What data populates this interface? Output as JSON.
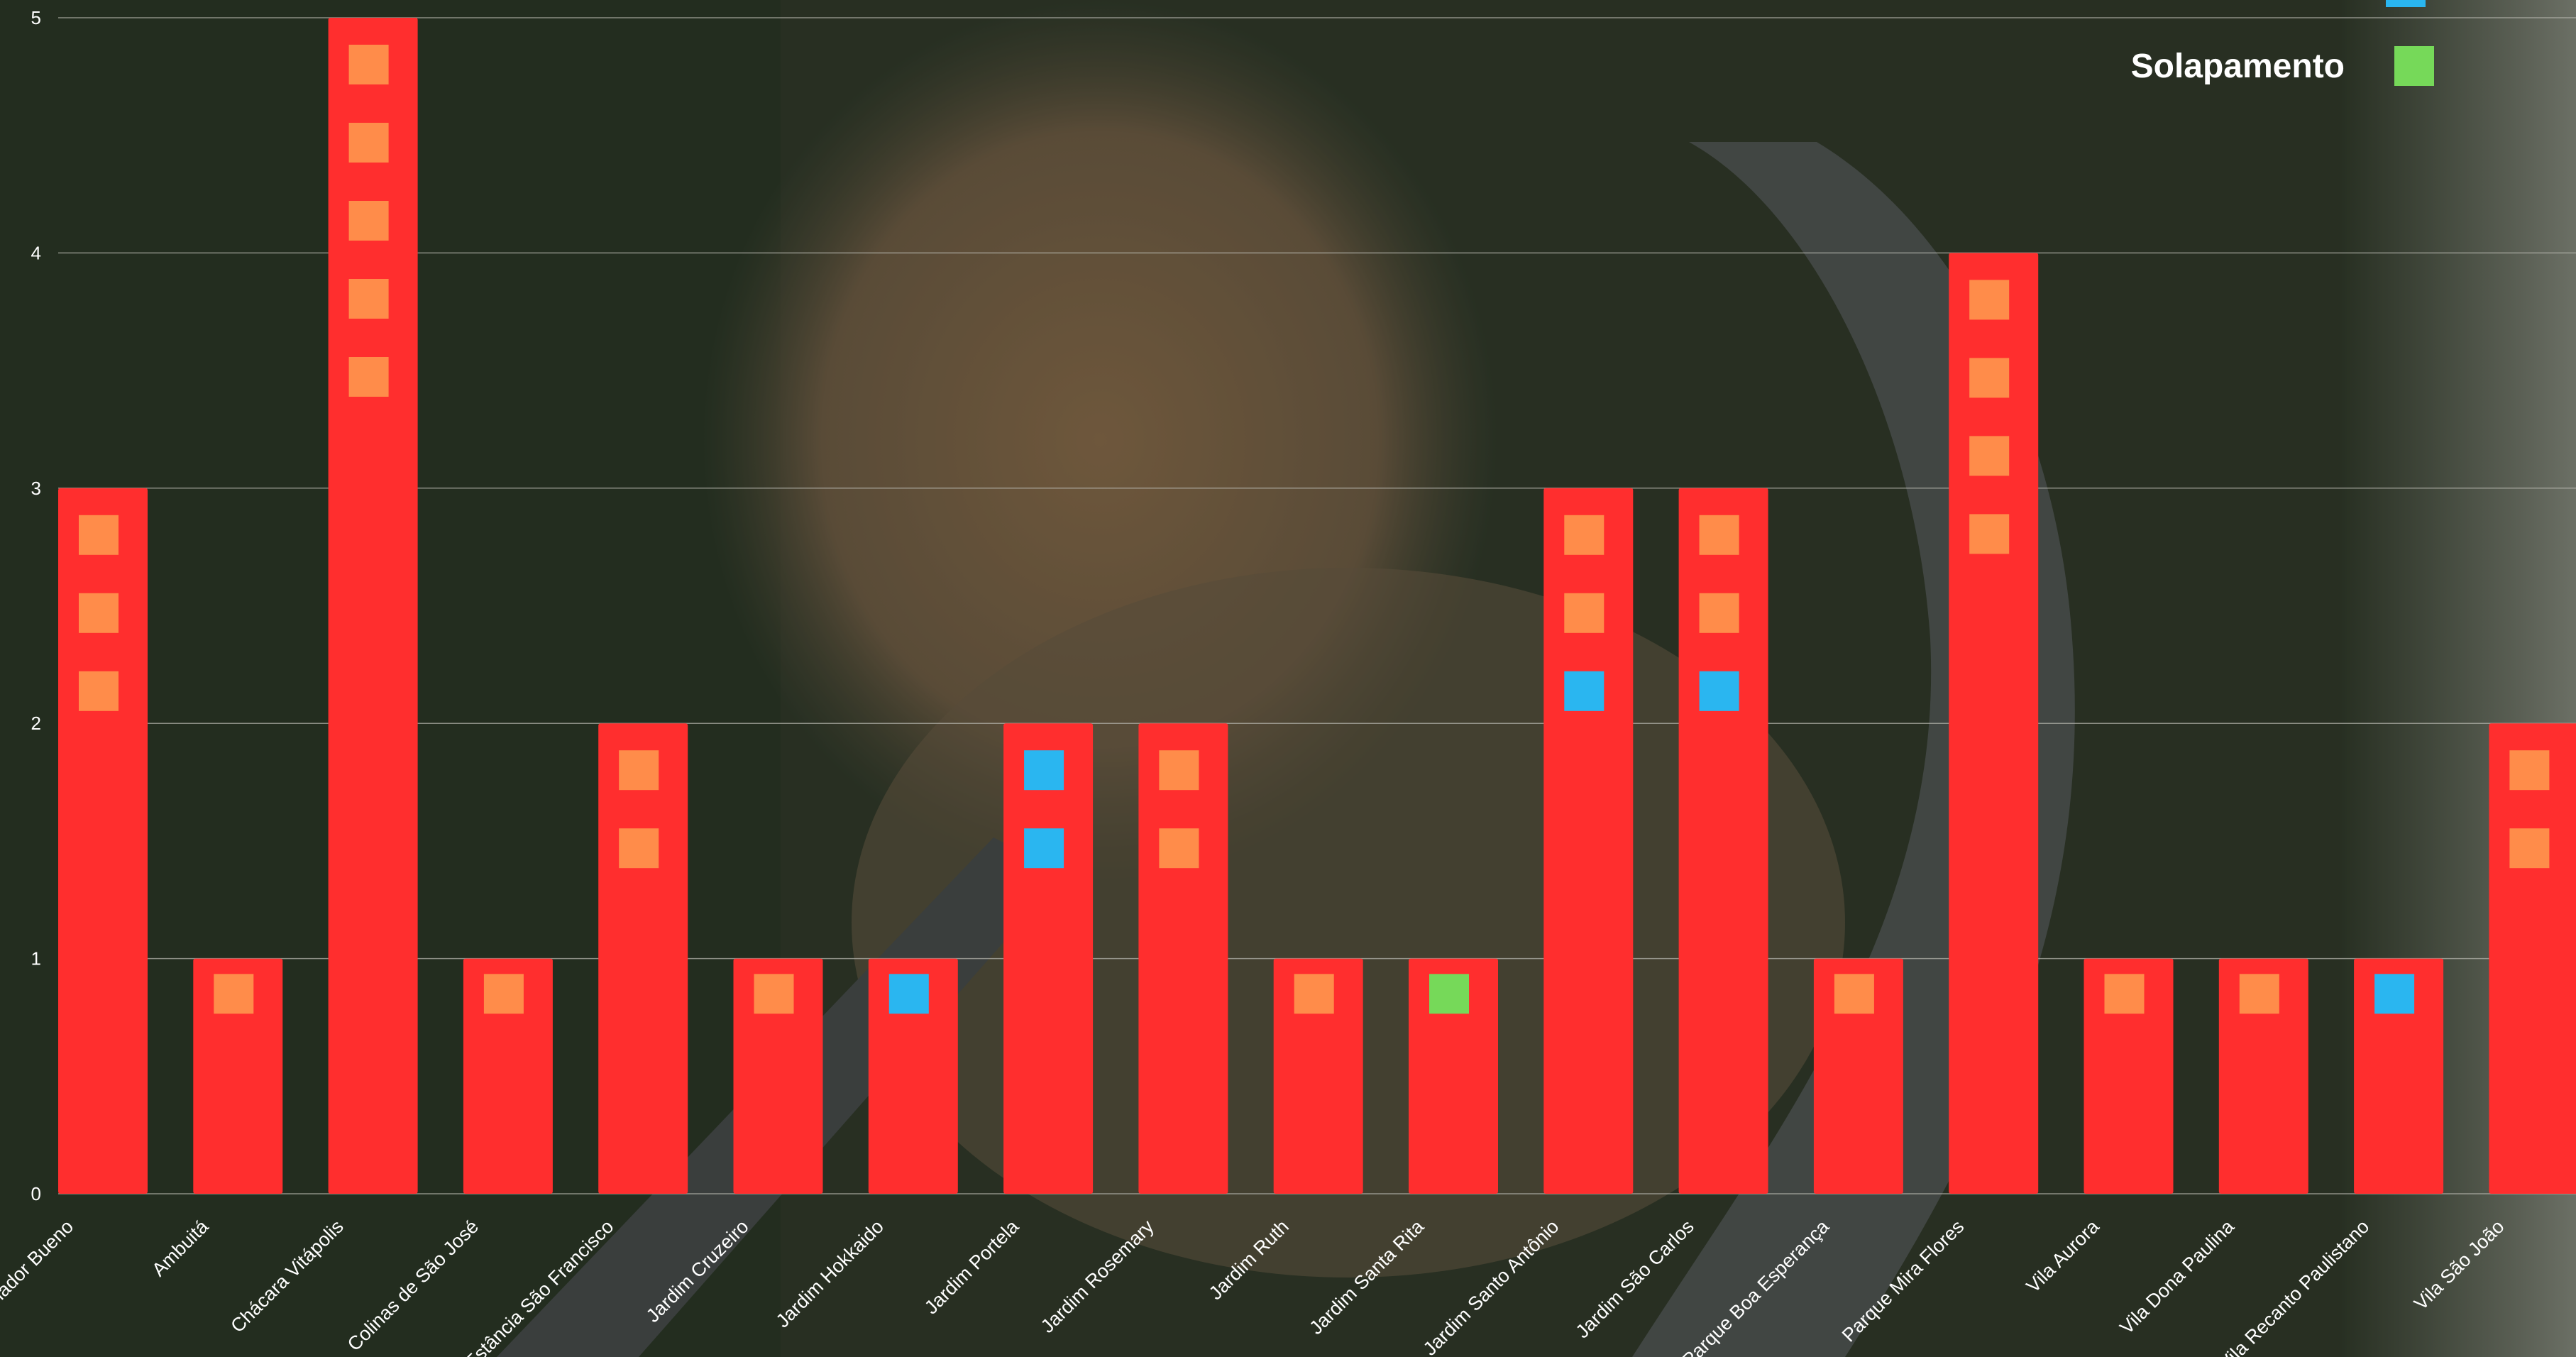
{
  "chart_data": {
    "type": "bar",
    "title": "",
    "xlabel": "",
    "ylabel": "",
    "ylim": [
      0,
      5
    ],
    "yticks": [
      "0",
      "1",
      "2",
      "3",
      "4",
      "5"
    ],
    "grid": true,
    "legend_position": "top-right",
    "categories": [
      "Amador Bueno",
      "Ambuitá",
      "Chácara Vitápolis",
      "Colinas de São José",
      "Estância São Francisco",
      "Jardim Cruzeiro",
      "Jardim Hokkaido",
      "Jardim Portela",
      "Jardim Rosemary",
      "Jardim Ruth",
      "Jardim Santa Rita",
      "Jardim Santo Antônio",
      "Jardim São Carlos",
      "Parque Boa Esperança",
      "Parque Mira Flores",
      "Vila Aurora",
      "Vila Dona Paulina",
      "Vila Recanto Paulistano",
      "Vila São João"
    ],
    "values": [
      3,
      1,
      5,
      1,
      2,
      1,
      1,
      2,
      2,
      1,
      1,
      3,
      3,
      1,
      4,
      1,
      1,
      1,
      2
    ],
    "markers": [
      [
        "orange",
        "orange",
        "orange"
      ],
      [
        "orange"
      ],
      [
        "orange",
        "orange",
        "orange",
        "orange",
        "orange"
      ],
      [
        "orange"
      ],
      [
        "orange",
        "orange"
      ],
      [
        "orange"
      ],
      [
        "blue"
      ],
      [
        "blue",
        "blue"
      ],
      [
        "orange",
        "orange"
      ],
      [
        "orange"
      ],
      [
        "green"
      ],
      [
        "orange",
        "orange",
        "blue"
      ],
      [
        "orange",
        "orange",
        "blue"
      ],
      [
        "orange"
      ],
      [
        "orange",
        "orange",
        "orange",
        "orange"
      ],
      [
        "orange"
      ],
      [
        "orange"
      ],
      [
        "blue"
      ],
      [
        "orange",
        "orange"
      ]
    ],
    "legend": [
      {
        "label": "Solapamento",
        "color": "#76d959"
      }
    ],
    "colors": {
      "bar": "#ff2e2e",
      "orange": "#ff8c4a",
      "blue": "#2ab6f0",
      "green": "#76d959",
      "grid": "#b8b8b0",
      "tick_text": "#ffffff"
    }
  }
}
